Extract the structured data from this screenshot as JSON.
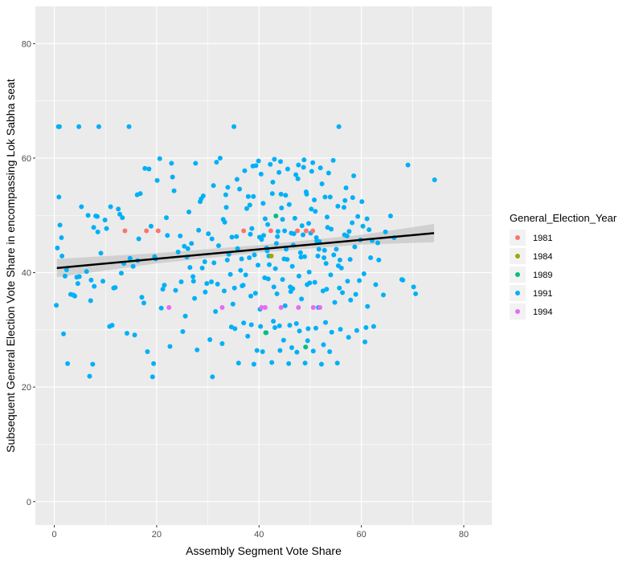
{
  "chart_data": {
    "type": "scatter",
    "title": "",
    "xlabel": "Assembly Segment Vote Share",
    "ylabel": "Subsequent General Election Vote Share in encompassing Lok Sabha seat",
    "xlim": [
      -3.7,
      85.5
    ],
    "ylim": [
      -4.1,
      86.5
    ],
    "x_ticks": [
      0,
      20,
      40,
      60,
      80
    ],
    "y_ticks": [
      0,
      20,
      40,
      60,
      80
    ],
    "grid": true,
    "legend": {
      "title": "General_Election_Year",
      "position": "right"
    },
    "colors": {
      "1981": "#F8766D",
      "1984": "#A3A500",
      "1989": "#00BF7D",
      "1991": "#00B0F6",
      "1994": "#E76BF3",
      "panel": "#EBEBEB",
      "grid": "#FFFFFF",
      "trend": "#000000",
      "ribbon": "#BEBEBE"
    },
    "trend_line": {
      "x": [
        0.5,
        74.2
      ],
      "y": [
        40.8,
        46.9
      ]
    },
    "confidence_band": {
      "x": [
        0.5,
        20,
        40,
        60,
        74.2
      ],
      "lower": [
        39.2,
        41.6,
        43.5,
        44.9,
        45.3
      ],
      "upper": [
        42.4,
        43.4,
        44.8,
        46.6,
        48.5
      ]
    },
    "series": [
      {
        "name": "1981",
        "x": [
          13.8,
          18,
          20.3,
          37,
          42.3,
          47.5,
          49.2,
          50.5
        ],
        "y": [
          47.3,
          47.3,
          47.3,
          47.3,
          47.3,
          47.3,
          47.3,
          47.3
        ]
      },
      {
        "name": "1984",
        "x": [
          42.4
        ],
        "y": [
          42.9
        ]
      },
      {
        "name": "1989",
        "x": [
          41.3,
          43.3,
          49.1
        ],
        "y": [
          29.5,
          49.9,
          27
        ]
      },
      {
        "name": "1991",
        "x": [
          0.8,
          1,
          4.8,
          8.7,
          14.6,
          35.1,
          55.6,
          0.9,
          1.1,
          1.4,
          0.6,
          1.5,
          5.3,
          8.4,
          10.2,
          12.8,
          16.2,
          18.5,
          23.1,
          28.5,
          33.9,
          38.2,
          44.6,
          51,
          58.3,
          65.7,
          69.1,
          74.3,
          2.1,
          6.3,
          9.5,
          11.6,
          13.1,
          15.4,
          19.8,
          21.5,
          24.2,
          26.8,
          29.4,
          30.7,
          32.1,
          33.8,
          35.6,
          37.4,
          39.1,
          40.5,
          42,
          43.7,
          45.3,
          46.8,
          48.2,
          49.7,
          51.3,
          52.8,
          54.1,
          55.5,
          57.2,
          58.7,
          60.3,
          61.8,
          63.2,
          64.7,
          66.4,
          68.1,
          70.2,
          3.2,
          7.1,
          10.8,
          14.2,
          17.5,
          20.9,
          23.7,
          25.6,
          27.4,
          29.8,
          31.5,
          33.2,
          34.9,
          36.7,
          38.4,
          40.2,
          41.8,
          43.5,
          45.1,
          46.6,
          48.3,
          49.9,
          51.6,
          53.2,
          54.8,
          56.3,
          57.9,
          59.6,
          61.2,
          62.8,
          64.3,
          1.8,
          4.4,
          7.8,
          11.3,
          15.7,
          19.2,
          22.6,
          25.1,
          27.9,
          30.4,
          32.8,
          35.3,
          37.8,
          39.6,
          41.4,
          43.1,
          44.8,
          46.4,
          47.9,
          49.5,
          51.1,
          52.6,
          54.2,
          55.9,
          57.5,
          59.1,
          60.7,
          62.4,
          2.6,
          6.9,
          9.9,
          12.5,
          16.8,
          20.1,
          23.4,
          26.3,
          28.7,
          31.1,
          33.6,
          36.2,
          38.9,
          40.8,
          42.7,
          44.3,
          45.9,
          47.6,
          49.2,
          50.8,
          52.3,
          53.9,
          55.4,
          57,
          58.5,
          60.1,
          0.4,
          3.7,
          7.2,
          11.9,
          17.1,
          21.2,
          24.8,
          27.1,
          29.5,
          31.9,
          34.4,
          36.9,
          39.3,
          41.1,
          42.9,
          44.6,
          46.2,
          47.8,
          49.4,
          50.9,
          52.5,
          54,
          55.7,
          57.3,
          58.9,
          60.5,
          63.4,
          67.9,
          4.9,
          8.5,
          13.3,
          18.9,
          22.1,
          25.4,
          28.2,
          30.8,
          33.3,
          35.8,
          38.6,
          40.1,
          41.7,
          43.4,
          45,
          46.7,
          48.4,
          50.1,
          51.8,
          53.4,
          55.1,
          56.7,
          58.2,
          59.8,
          61.5,
          70.6,
          2.4,
          9.1,
          16.3,
          19.6,
          26.5,
          31.2,
          34.1,
          36.4,
          38.1,
          39.8,
          41.6,
          43.2,
          44.9,
          46.5,
          48.1,
          49.8,
          51.5,
          53.1,
          54.6,
          56.1,
          57.8,
          62.1,
          4.6,
          8.1,
          17.7,
          27.6,
          35.7,
          37.2,
          38.8,
          40.4,
          42.2,
          43.9,
          45.6,
          47.2,
          48.7,
          50.3,
          52,
          53.6,
          56.8,
          61.1,
          7.5,
          19.4,
          30.9,
          36,
          39,
          40.7,
          42.5,
          44.1,
          45.8,
          47.4,
          49,
          50.6,
          52.2,
          53.8,
          55.3,
          60.9,
          11,
          21.9,
          33,
          37.6,
          41.2,
          44.4,
          47,
          50.2,
          53.3,
          56.6,
          59.3,
          14.8,
          25.9,
          36.6,
          41.9,
          45.5,
          48.9,
          52.7,
          55.8,
          24.6,
          30.1,
          34.7,
          38.3,
          40.9,
          43.6,
          46.3,
          48.6,
          51.2,
          57.6,
          29.1,
          33.5,
          37.9,
          42.6,
          45.2,
          49.3,
          52.9,
          22.9,
          31.7,
          39.4,
          44.2,
          47.7,
          50.5,
          13.6,
          26.1,
          35.2,
          41.5,
          46.1,
          51.7,
          6.6,
          20.6,
          32.4,
          39.9,
          43,
          48.8,
          54.5,
          4,
          16.5,
          28.9,
          37,
          42.8,
          47.3,
          53,
          7.7,
          18.2,
          27.2,
          34.6,
          38.5,
          40.3,
          44,
          46,
          49.6
        ],
        "y": [
          65.5,
          65.5,
          65.5,
          65.5,
          65.5,
          65.5,
          65.5,
          53.2,
          48.3,
          46.1,
          44.3,
          42.9,
          51.5,
          49.8,
          47.7,
          50.2,
          53.6,
          58.1,
          56.7,
          52.4,
          54.9,
          51.8,
          49.3,
          50.7,
          53.1,
          49.9,
          58.8,
          56.2,
          39.4,
          40.2,
          38.5,
          37.3,
          39.9,
          41.1,
          42.4,
          37.8,
          43.6,
          45.1,
          41.9,
          38.4,
          44.7,
          42.2,
          46.3,
          39.6,
          43.1,
          45.8,
          41.4,
          47.2,
          44.1,
          46.8,
          42.7,
          48.6,
          45.5,
          43.9,
          47.6,
          41.2,
          46.4,
          44.5,
          48.1,
          42.6,
          45.2,
          47.1,
          46.1,
          38.7,
          37.5,
          36.2,
          35.1,
          30.6,
          29.4,
          34.7,
          33.8,
          36.9,
          32.4,
          35.5,
          38.1,
          33.2,
          36.8,
          34.5,
          37.7,
          35.9,
          33.6,
          38.9,
          36.3,
          34.2,
          37.2,
          35.4,
          38.2,
          33.9,
          37.1,
          34.8,
          36.5,
          35.2,
          38.6,
          34.1,
          37.9,
          36.1,
          29.3,
          39.2,
          37.6,
          30.8,
          29.1,
          21.8,
          27.1,
          29.7,
          26.5,
          28.3,
          27.6,
          30.2,
          28.9,
          26.4,
          29.5,
          30.4,
          28.2,
          26.9,
          29.8,
          28.1,
          30.3,
          27.4,
          29.6,
          30.1,
          28.7,
          29.9,
          27.9,
          30.6,
          24.1,
          21.9,
          49.2,
          51.1,
          53.8,
          56.1,
          54.3,
          50.6,
          52.9,
          55.2,
          51.4,
          54.6,
          53.3,
          52.1,
          55.8,
          53.7,
          51.9,
          56.4,
          54.1,
          52.7,
          55.5,
          53.2,
          51.6,
          54.8,
          56.9,
          52.4,
          34.3,
          36.1,
          38.7,
          37.4,
          35.7,
          37.1,
          38.4,
          39.3,
          36.6,
          38,
          39.7,
          37.8,
          36.4,
          39.1,
          37.5,
          38.8,
          36.7,
          39.4,
          37.9,
          38.3,
          36.8,
          39.6,
          37.3,
          38.5,
          36.2,
          39.8,
          42.2,
          38.8,
          39.3,
          47.1,
          49.6,
          48.1,
          46.5,
          44.6,
          47.4,
          45.9,
          48.8,
          44.2,
          47.7,
          46.2,
          48.4,
          45.1,
          47.3,
          44.8,
          48.2,
          46.9,
          45.4,
          47.9,
          44.1,
          46.6,
          48.7,
          45.7,
          47.5,
          36.3,
          40.5,
          43.4,
          42.1,
          42.8,
          40.9,
          41.7,
          43.2,
          40.4,
          42.6,
          41.3,
          43.8,
          40.7,
          42.4,
          41.1,
          43.5,
          40.1,
          42.9,
          41.6,
          43.1,
          40.8,
          42.3,
          45.6,
          38.1,
          49.9,
          58.2,
          59.1,
          56.3,
          57.8,
          58.6,
          57.2,
          58.9,
          57.5,
          58.1,
          57.1,
          58.4,
          57.7,
          58.3,
          57.4,
          52.6,
          49.4,
          24,
          24.1,
          21.8,
          24.2,
          24,
          26.2,
          24.3,
          26.4,
          24.1,
          26.1,
          24.2,
          26.3,
          24,
          26.2,
          24.2,
          30.4,
          51.5,
          49.6,
          49.3,
          51.2,
          49.4,
          51.3,
          49.5,
          51.1,
          49.7,
          51.4,
          49.8,
          42.5,
          42.7,
          42.4,
          42.9,
          42.3,
          42.8,
          42.6,
          42.2,
          46.4,
          46.8,
          46.2,
          46.7,
          46.5,
          46.3,
          46.9,
          46.6,
          46.1,
          47.2,
          53.4,
          53.6,
          53.3,
          53.8,
          53.5,
          53.7,
          53.2,
          59.1,
          59.3,
          58.7,
          59.4,
          58.8,
          59.2,
          41.6,
          44.2,
          37.3,
          44.3,
          37.5,
          44.1,
          50,
          59.9,
          60,
          59.5,
          59.8,
          59.7,
          59.6,
          35.9,
          45.9,
          40.8,
          31.2,
          31.5,
          31.1,
          31.3,
          47.9,
          26.2,
          38.5,
          30.5,
          30.9,
          30.6,
          30.7,
          30.8,
          30.2
        ]
      },
      {
        "name": "1994",
        "x": [
          22.4,
          32.8,
          40.5,
          41.2,
          44.3,
          47.7,
          50.6,
          51.9
        ],
        "y": [
          33.9,
          33.9,
          33.9,
          33.9,
          33.9,
          33.9,
          33.9,
          33.9
        ]
      }
    ]
  }
}
